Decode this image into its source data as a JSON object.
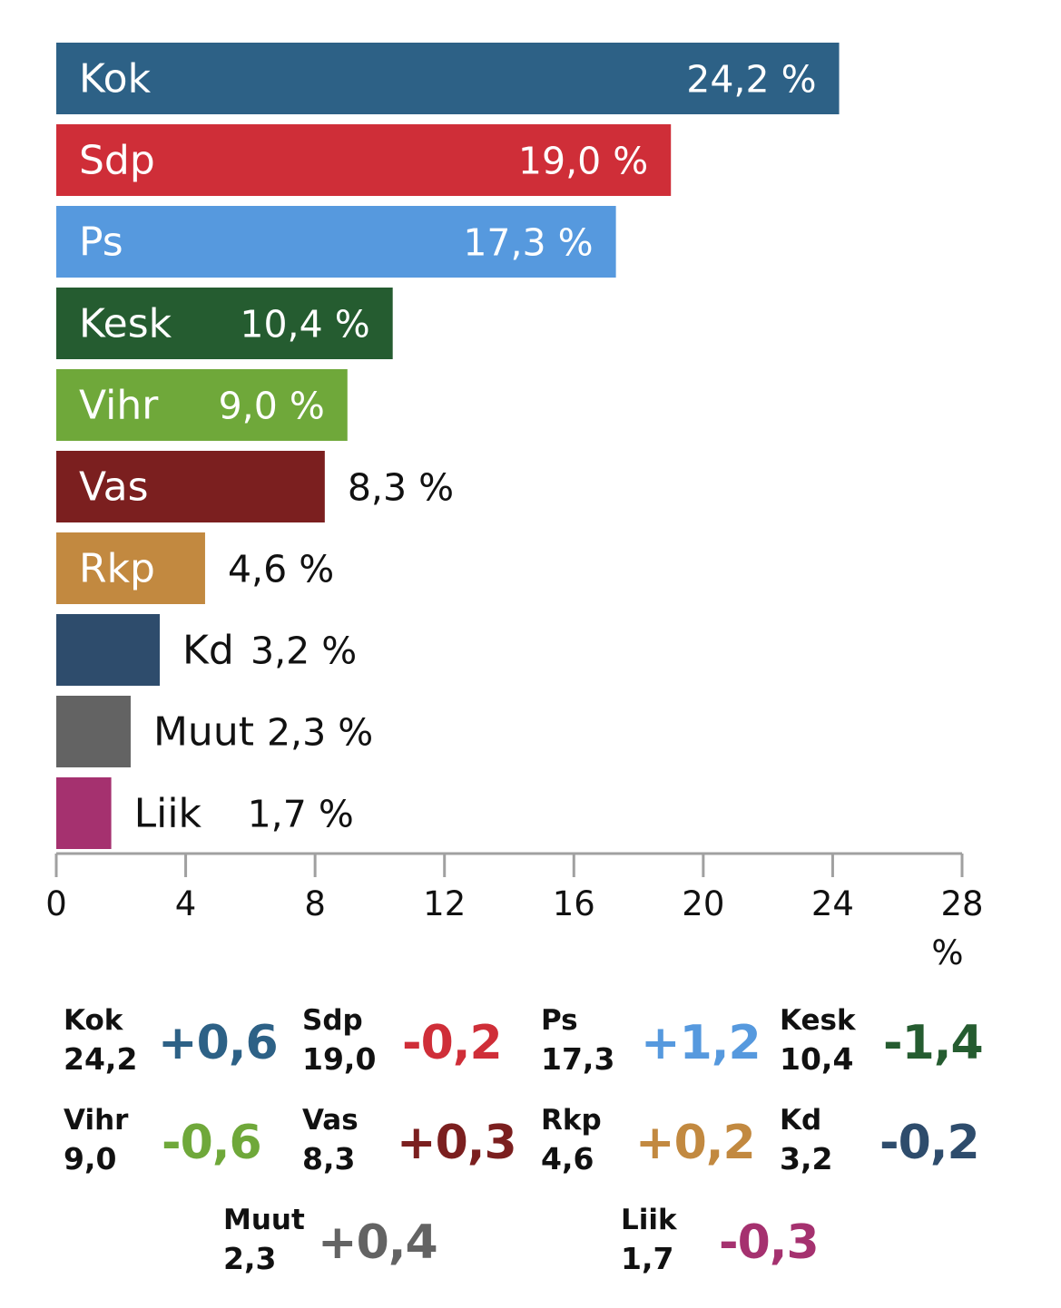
{
  "chart_data": {
    "type": "bar",
    "orientation": "horizontal",
    "categories": [
      "Kok",
      "Sdp",
      "Ps",
      "Kesk",
      "Vihr",
      "Vas",
      "Rkp",
      "Kd",
      "Muut",
      "Liik"
    ],
    "values": [
      24.2,
      19.0,
      17.3,
      10.4,
      9.0,
      8.3,
      4.6,
      3.2,
      2.3,
      1.7
    ],
    "value_labels": [
      "24,2 %",
      "19,0 %",
      "17,3 %",
      "10,4 %",
      "9,0 %",
      "8,3 %",
      "4,6 %",
      "3,2 %",
      "2,3 %",
      "1,7 %"
    ],
    "colors": [
      "#2d6186",
      "#cf2e38",
      "#5699de",
      "#255c30",
      "#6fa83a",
      "#7b1f1f",
      "#c28940",
      "#2e4c6c",
      "#636363",
      "#a5316f"
    ],
    "xlim": [
      0,
      28
    ],
    "x_ticks": [
      0,
      4,
      8,
      12,
      16,
      20,
      24,
      28
    ],
    "xlabel": "%",
    "grid": false
  },
  "summary": [
    {
      "party": "Kok",
      "value": "24,2",
      "change": "+0,6",
      "color": "#2d6186"
    },
    {
      "party": "Sdp",
      "value": "19,0",
      "change": "-0,2",
      "color": "#cf2e38"
    },
    {
      "party": "Ps",
      "value": "17,3",
      "change": "+1,2",
      "color": "#5699de"
    },
    {
      "party": "Kesk",
      "value": "10,4",
      "change": "-1,4",
      "color": "#255c30"
    },
    {
      "party": "Vihr",
      "value": "9,0",
      "change": "-0,6",
      "color": "#6fa83a"
    },
    {
      "party": "Vas",
      "value": "8,3",
      "change": "+0,3",
      "color": "#7b1f1f"
    },
    {
      "party": "Rkp",
      "value": "4,6",
      "change": "+0,2",
      "color": "#c28940"
    },
    {
      "party": "Kd",
      "value": "3,2",
      "change": "-0,2",
      "color": "#2e4c6c"
    },
    {
      "party": "Muut",
      "value": "2,3",
      "change": "+0,4",
      "color": "#636363"
    },
    {
      "party": "Liik",
      "value": "1,7",
      "change": "-0,3",
      "color": "#a5316f"
    }
  ]
}
